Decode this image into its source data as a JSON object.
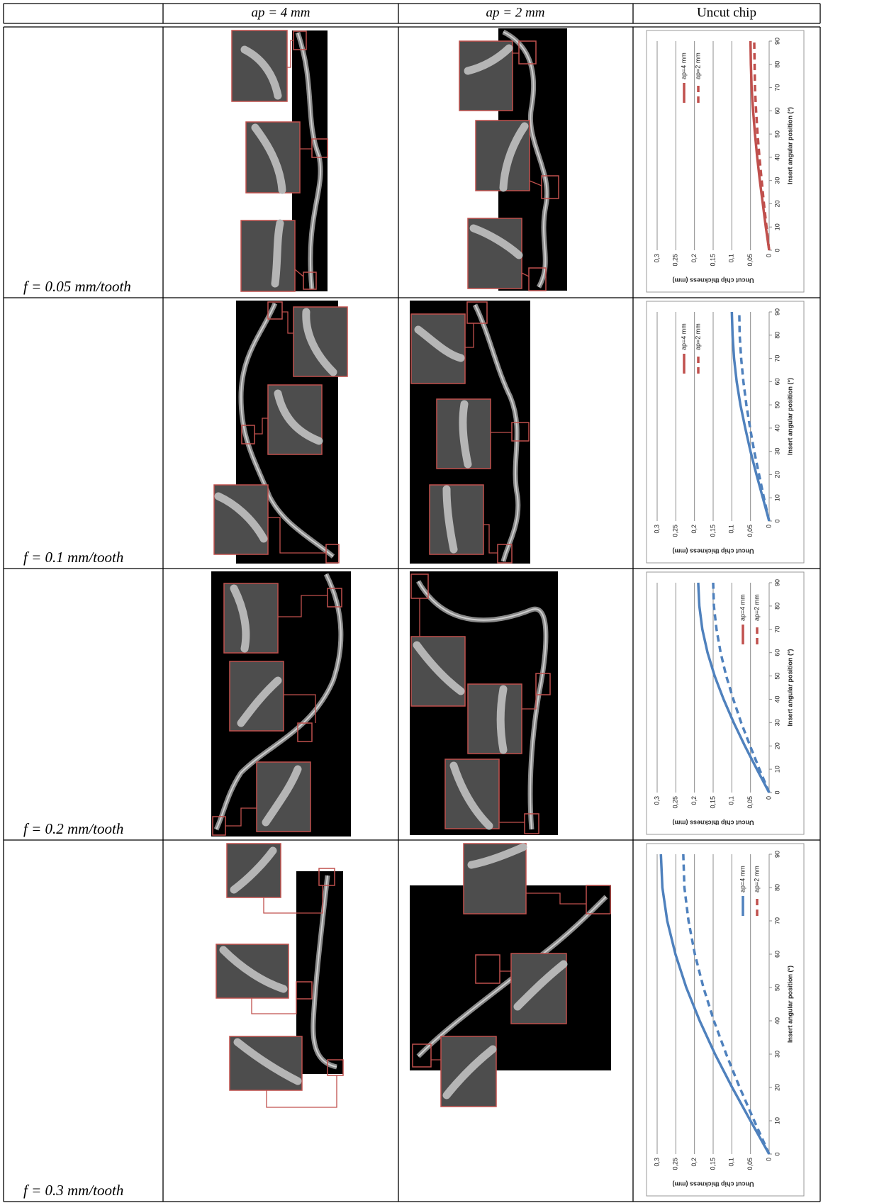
{
  "table": {
    "header": [
      "ap = 4 mm",
      "ap = 2 mm",
      "Uncut chip"
    ],
    "rows": [
      {
        "label": "f = 0.05 mm/tooth",
        "chart": {
          "type": "line",
          "xlabel": "Insert angular position (°)",
          "ylabel": "Uncut chip thickness (mm)",
          "x": [
            0,
            10,
            20,
            30,
            40,
            50,
            60,
            70,
            80,
            90
          ],
          "xlim": [
            0,
            90
          ],
          "xticks": [
            0,
            10,
            20,
            30,
            40,
            50,
            60,
            70,
            80,
            90
          ],
          "ylim": [
            0,
            0.3
          ],
          "yticks": [
            0,
            {
              "value": 0.05,
              "label": "0,05"
            },
            {
              "value": 0.1,
              "label": "0,1"
            },
            {
              "value": 0.15,
              "label": "0,15"
            },
            {
              "value": 0.2,
              "label": "0,2"
            },
            {
              "value": 0.25,
              "label": "0,25"
            },
            {
              "value": 0.3,
              "label": "0,3"
            }
          ],
          "grid": true,
          "legend": "upper right",
          "series": [
            {
              "name": "ap=4 mm",
              "color": "#c0504d",
              "legend_color": "#c0504d",
              "dashed": false,
              "values": [
                0,
                0.009,
                0.017,
                0.025,
                0.032,
                0.038,
                0.043,
                0.047,
                0.049,
                0.05
              ]
            },
            {
              "name": "ap=2 mm",
              "color": "#c0504d",
              "legend_color": "#c0504d",
              "dashed": true,
              "values": [
                0,
                0.007,
                0.014,
                0.02,
                0.026,
                0.031,
                0.035,
                0.038,
                0.039,
                0.04
              ]
            }
          ]
        }
      },
      {
        "label": "f = 0.1 mm/tooth",
        "chart": {
          "type": "line",
          "xlabel": "Insert angular position (°)",
          "ylabel": "Uncut chip thickness (mm)",
          "x": [
            0,
            10,
            20,
            30,
            40,
            50,
            60,
            70,
            80,
            90
          ],
          "xlim": [
            0,
            90
          ],
          "xticks": [
            0,
            10,
            20,
            30,
            40,
            50,
            60,
            70,
            80,
            90
          ],
          "ylim": [
            0,
            0.3
          ],
          "yticks": [
            0,
            {
              "value": 0.05,
              "label": "0,05"
            },
            {
              "value": 0.1,
              "label": "0,1"
            },
            {
              "value": 0.15,
              "label": "0,15"
            },
            {
              "value": 0.2,
              "label": "0,2"
            },
            {
              "value": 0.25,
              "label": "0,25"
            },
            {
              "value": 0.3,
              "label": "0,3"
            }
          ],
          "grid": true,
          "legend": "upper right",
          "series": [
            {
              "name": "ap=4 mm",
              "color": "#4f81bd",
              "legend_color": "#c0504d",
              "dashed": false,
              "values": [
                0,
                0.017,
                0.034,
                0.05,
                0.064,
                0.077,
                0.087,
                0.094,
                0.098,
                0.1
              ]
            },
            {
              "name": "ap=2 mm",
              "color": "#4f81bd",
              "legend_color": "#c0504d",
              "dashed": true,
              "values": [
                0,
                0.014,
                0.027,
                0.04,
                0.051,
                0.061,
                0.069,
                0.075,
                0.079,
                0.08
              ]
            }
          ]
        }
      },
      {
        "label": "f = 0.2 mm/tooth",
        "chart": {
          "type": "line",
          "xlabel": "Insert angular position (°)",
          "ylabel": "Uncut chip thickness (mm)",
          "x": [
            0,
            10,
            20,
            30,
            40,
            50,
            60,
            70,
            80,
            90
          ],
          "xlim": [
            0,
            90
          ],
          "xticks": [
            0,
            10,
            20,
            30,
            40,
            50,
            60,
            70,
            80,
            90
          ],
          "ylim": [
            0,
            0.3
          ],
          "yticks": [
            0,
            {
              "value": 0.05,
              "label": "0,05"
            },
            {
              "value": 0.1,
              "label": "0,1"
            },
            {
              "value": 0.15,
              "label": "0,15"
            },
            {
              "value": 0.2,
              "label": "0,2"
            },
            {
              "value": 0.25,
              "label": "0,25"
            },
            {
              "value": 0.3,
              "label": "0,3"
            }
          ],
          "grid": true,
          "legend": "lower right",
          "series": [
            {
              "name": "ap=4 mm",
              "color": "#4f81bd",
              "legend_color": "#c0504d",
              "dashed": false,
              "values": [
                0,
                0.033,
                0.065,
                0.095,
                0.122,
                0.146,
                0.165,
                0.179,
                0.187,
                0.19
              ]
            },
            {
              "name": "ap=2 mm",
              "color": "#4f81bd",
              "legend_color": "#c0504d",
              "dashed": true,
              "values": [
                0,
                0.026,
                0.051,
                0.075,
                0.096,
                0.115,
                0.13,
                0.141,
                0.148,
                0.15
              ]
            }
          ]
        }
      },
      {
        "label": "f = 0.3 mm/tooth",
        "chart": {
          "type": "line",
          "xlabel": "Insert angular position (°)",
          "ylabel": "Uncut chip thickness (mm)",
          "x": [
            0,
            10,
            20,
            30,
            40,
            50,
            60,
            70,
            80,
            90
          ],
          "xlim": [
            0,
            90
          ],
          "xticks": [
            0,
            10,
            20,
            30,
            40,
            50,
            60,
            70,
            80,
            90
          ],
          "ylim": [
            0,
            0.3
          ],
          "yticks": [
            0,
            {
              "value": 0.05,
              "label": "0,05"
            },
            {
              "value": 0.1,
              "label": "0,1"
            },
            {
              "value": 0.15,
              "label": "0,15"
            },
            {
              "value": 0.2,
              "label": "0,2"
            },
            {
              "value": 0.25,
              "label": "0,25"
            },
            {
              "value": 0.3,
              "label": "0,3"
            }
          ],
          "grid": true,
          "legend": "lower right",
          "series": [
            {
              "name": "ap=4 mm",
              "color": "#4f81bd",
              "legend_color": "#4f81bd",
              "dashed": false,
              "values": [
                0,
                0.05,
                0.099,
                0.145,
                0.186,
                0.222,
                0.251,
                0.273,
                0.286,
                0.29
              ]
            },
            {
              "name": "ap=2 mm",
              "color": "#4f81bd",
              "legend_color": "#c0504d",
              "dashed": true,
              "values": [
                0,
                0.04,
                0.079,
                0.115,
                0.148,
                0.176,
                0.199,
                0.216,
                0.227,
                0.23
              ]
            }
          ]
        }
      }
    ]
  }
}
